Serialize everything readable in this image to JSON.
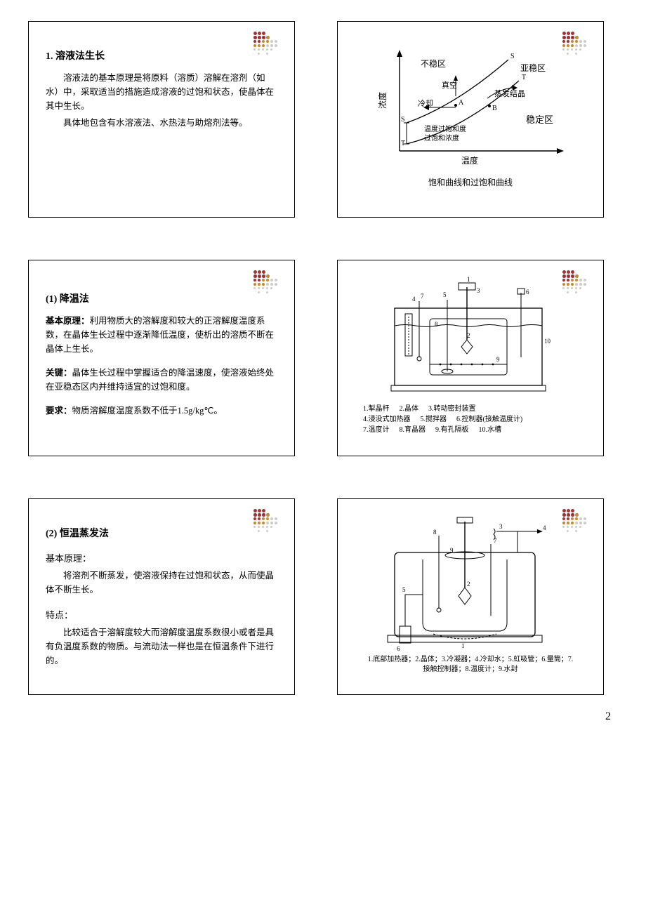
{
  "slide1": {
    "title": "1. 溶液法生长",
    "p1": "溶液法的基本原理是将原料（溶质）溶解在溶剂（如水）中，采取适当的措施造成溶液的过饱和状态，使晶体在其中生长。",
    "p2": "具体地包含有水溶液法、水热法与助熔剂法等。"
  },
  "slide2": {
    "label_unstable": "不稳区",
    "label_metastable": "亚稳区",
    "label_stable": "稳定区",
    "label_vacuum": "真空",
    "label_evap": "蒸发结晶",
    "label_cool": "冷却",
    "y_axis": "浓度",
    "x_axis": "温度",
    "label_supsat": "温度过饱和度",
    "label_satcon": "过饱和浓度",
    "caption": "饱和曲线和过饱和曲线"
  },
  "slide3": {
    "title": "(1)  降温法",
    "p1_label": "基本原理：",
    "p1": "利用物质大的溶解度和较大的正溶解度温度系数，在晶体生长过程中逐渐降低温度，使析出的溶质不断在晶体上生长。",
    "p2_label": "关键：",
    "p2": "晶体生长过程中掌握适合的降温速度，使溶液始终处在亚稳态区内并维持适宜的过饱和度。",
    "p3_label": "要求：",
    "p3": "物质溶解度温度系数不低于1.5g/kg℃。"
  },
  "slide4": {
    "items": [
      {
        "n": "1",
        "t": "掣晶杆"
      },
      {
        "n": "2",
        "t": "晶体"
      },
      {
        "n": "3",
        "t": "转动密封装置"
      },
      {
        "n": "4",
        "t": "浸没式加热器"
      },
      {
        "n": "5",
        "t": "搅拌器"
      },
      {
        "n": "6",
        "t": "控制器(接触温度计)"
      },
      {
        "n": "7",
        "t": "温度计"
      },
      {
        "n": "8",
        "t": "育晶器"
      },
      {
        "n": "9",
        "t": "有孔隔板"
      },
      {
        "n": "10",
        "t": "水槽"
      }
    ]
  },
  "slide5": {
    "title": "(2)  恒温蒸发法",
    "p1_label": "基本原理：",
    "p1": "将溶剂不断蒸发，使溶液保持在过饱和状态，从而使晶体不断生长。",
    "p2_label": "特点：",
    "p2": "比较适合于溶解度较大而溶解度温度系数很小或者是具有负温度系数的物质。与流动法一样也是在恒温条件下进行的。"
  },
  "slide6": {
    "caption": "1.底部加热器；2.晶体；3.冷凝器；4.冷却水；5.虹吸管；6.量筒；7.接触控制器；8.温度计；9.水封"
  },
  "page_num": "2",
  "colors": {
    "brand1": "#b02c2c",
    "brand2": "#c98a2a",
    "lightgrey": "#cccccc"
  }
}
